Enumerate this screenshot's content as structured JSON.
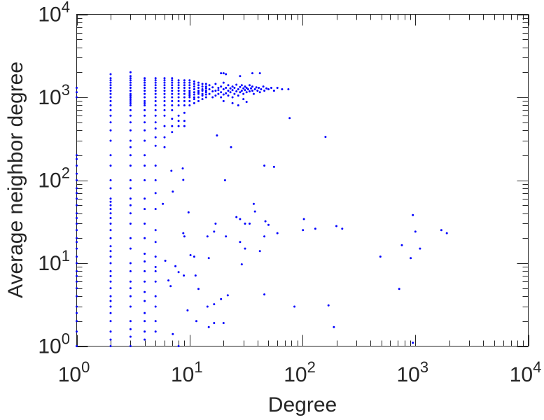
{
  "chart_data": {
    "type": "scatter",
    "title": "",
    "xlabel": "Degree",
    "ylabel": "Average neighbor degree",
    "xscale": "log",
    "yscale": "log",
    "xlim": [
      1,
      10000
    ],
    "ylim": [
      1,
      10000
    ],
    "grid": false,
    "marker_color": "#0000ff",
    "x_ticks": [
      {
        "base": "10",
        "exp": "0"
      },
      {
        "base": "10",
        "exp": "1"
      },
      {
        "base": "10",
        "exp": "2"
      },
      {
        "base": "10",
        "exp": "3"
      },
      {
        "base": "10",
        "exp": "4"
      }
    ],
    "y_ticks": [
      {
        "base": "10",
        "exp": "0"
      },
      {
        "base": "10",
        "exp": "1"
      },
      {
        "base": "10",
        "exp": "2"
      },
      {
        "base": "10",
        "exp": "3"
      },
      {
        "base": "10",
        "exp": "4"
      }
    ],
    "columns": [
      {
        "x": 1,
        "y": [
          1,
          1.5,
          2,
          2.5,
          3,
          4,
          5,
          6,
          7,
          8,
          10,
          12,
          15,
          18,
          20,
          25,
          30,
          35,
          40,
          50,
          60,
          70,
          80,
          100,
          120,
          150,
          180,
          200,
          1000,
          1150,
          1300
        ]
      },
      {
        "x": 2,
        "y": [
          1,
          1.2,
          1.5,
          2,
          2.5,
          3,
          3.5,
          4,
          5,
          6,
          7,
          8,
          10,
          12,
          14,
          16,
          20,
          25,
          30,
          35,
          40,
          45,
          50,
          55,
          60,
          80,
          100,
          150,
          200,
          300,
          400,
          500,
          600,
          700,
          800,
          900,
          1000,
          1100,
          1200,
          1300,
          1400,
          1500,
          1600,
          1700,
          1900
        ]
      },
      {
        "x": 3,
        "y": [
          1,
          1.3,
          1.6,
          2,
          3,
          4,
          5,
          6,
          8,
          10,
          15,
          20,
          30,
          40,
          50,
          60,
          80,
          100,
          150,
          200,
          250,
          300,
          400,
          500,
          600,
          700,
          800,
          850,
          900,
          950,
          1000,
          1050,
          1100,
          1200,
          1300,
          1400,
          1500,
          1600,
          1700,
          1800,
          2000
        ]
      },
      {
        "x": 4,
        "y": [
          1.2,
          1.5,
          2,
          2.5,
          3.5,
          4.5,
          6,
          8,
          10.5,
          13,
          20,
          30,
          45,
          60,
          100,
          150,
          200,
          300,
          400,
          500,
          600,
          700,
          800,
          850,
          900,
          1000,
          1100,
          1200,
          1300,
          1400,
          1500,
          1600,
          1700
        ]
      },
      {
        "x": 5,
        "y": [
          1.5,
          2,
          3,
          4,
          6,
          8,
          9,
          12,
          18,
          25,
          45,
          70,
          100,
          150,
          260,
          330,
          420,
          500,
          600,
          700,
          800,
          900,
          1000,
          1100,
          1200,
          1300,
          1400,
          1500,
          1600,
          1700
        ]
      },
      {
        "x": 6,
        "y": [
          250,
          330,
          450,
          600,
          700,
          800,
          900,
          1000,
          1100,
          1200,
          1300,
          1400,
          1500,
          1600,
          1700
        ]
      },
      {
        "x": 7,
        "y": [
          380,
          450,
          550,
          700,
          800,
          900,
          1000,
          1100,
          1200,
          1300,
          1400,
          1500,
          1600,
          1700
        ]
      },
      {
        "x": 8,
        "y": [
          450,
          520,
          600,
          800,
          900,
          1000,
          1100,
          1200,
          1300,
          1400,
          1500,
          1600
        ]
      },
      {
        "x": 9,
        "y": [
          450,
          520,
          650,
          800,
          900,
          1000,
          1100,
          1200,
          1300,
          1400,
          1500,
          1600
        ]
      },
      {
        "x": 10,
        "y": [
          800,
          900,
          1000,
          1050,
          1100,
          1150,
          1200,
          1300,
          1400,
          1500,
          1600
        ]
      },
      {
        "x": 11,
        "y": [
          850,
          950,
          1000,
          1080,
          1150,
          1250,
          1350,
          1450,
          1550
        ]
      },
      {
        "x": 12,
        "y": [
          900,
          1000,
          1100,
          1150,
          1200,
          1300,
          1400,
          1500
        ]
      },
      {
        "x": 13,
        "y": [
          950,
          1050,
          1100,
          1200,
          1250,
          1350,
          1450
        ]
      },
      {
        "x": 14,
        "y": [
          1000,
          1080,
          1150,
          1200,
          1280,
          1350,
          1450
        ]
      }
    ],
    "points": [
      [
        15,
        1100
      ],
      [
        15,
        1250
      ],
      [
        15,
        1400
      ],
      [
        16,
        1000
      ],
      [
        16,
        1180
      ],
      [
        16,
        1320
      ],
      [
        17,
        1050
      ],
      [
        17,
        1200
      ],
      [
        17,
        1450
      ],
      [
        18,
        1100
      ],
      [
        18,
        1300
      ],
      [
        18,
        1220
      ],
      [
        19,
        1000
      ],
      [
        19,
        1150
      ],
      [
        19,
        1350
      ],
      [
        20,
        1080
      ],
      [
        20,
        1250
      ],
      [
        20,
        1500
      ],
      [
        21,
        1120
      ],
      [
        21,
        1300
      ],
      [
        22,
        1050
      ],
      [
        22,
        1200
      ],
      [
        22,
        1400
      ],
      [
        23,
        1150
      ],
      [
        23,
        1280
      ],
      [
        24,
        1000
      ],
      [
        24,
        1220
      ],
      [
        24,
        1350
      ],
      [
        25,
        1100
      ],
      [
        25,
        1300
      ],
      [
        26,
        1180
      ],
      [
        26,
        1420
      ],
      [
        27,
        1250
      ],
      [
        27,
        1050
      ],
      [
        28,
        1150
      ],
      [
        28,
        1330
      ],
      [
        29,
        1200
      ],
      [
        29,
        1400
      ],
      [
        30,
        1100
      ],
      [
        30,
        1280
      ],
      [
        31,
        1220
      ],
      [
        31,
        1350
      ],
      [
        32,
        1150
      ],
      [
        32,
        1300
      ],
      [
        33,
        1250
      ],
      [
        34,
        1180
      ],
      [
        34,
        1400
      ],
      [
        35,
        1280
      ],
      [
        36,
        1200
      ],
      [
        36,
        1350
      ],
      [
        37,
        1100
      ],
      [
        38,
        1250
      ],
      [
        39,
        1320
      ],
      [
        40,
        1200
      ],
      [
        41,
        1300
      ],
      [
        42,
        1150
      ],
      [
        43,
        1250
      ],
      [
        45,
        1350
      ],
      [
        46,
        1200
      ],
      [
        48,
        1280
      ],
      [
        50,
        1250
      ],
      [
        53,
        1300
      ],
      [
        56,
        1200
      ],
      [
        60,
        1300
      ],
      [
        66,
        1250
      ],
      [
        75,
        1250
      ],
      [
        20,
        900
      ],
      [
        24,
        850
      ],
      [
        30,
        950
      ],
      [
        27,
        800
      ],
      [
        32,
        880
      ],
      [
        19,
        1950
      ],
      [
        20,
        1950
      ],
      [
        21,
        1900
      ],
      [
        28,
        1800
      ],
      [
        36,
        1950
      ],
      [
        42,
        1950
      ],
      [
        160,
        333
      ],
      [
        77,
        560
      ],
      [
        17.5,
        347
      ],
      [
        23.3,
        250
      ],
      [
        46,
        150
      ],
      [
        56,
        145
      ],
      [
        20.6,
        100
      ],
      [
        8.7,
        139
      ],
      [
        6.9,
        130
      ],
      [
        8.8,
        101
      ],
      [
        7.1,
        73
      ],
      [
        5.8,
        52
      ],
      [
        37,
        52
      ],
      [
        38,
        42
      ],
      [
        9.8,
        41
      ],
      [
        26,
        36
      ],
      [
        28,
        34
      ],
      [
        31,
        30
      ],
      [
        34,
        30
      ],
      [
        47,
        32
      ],
      [
        50,
        29
      ],
      [
        60,
        23
      ],
      [
        103,
        34
      ],
      [
        101,
        25
      ],
      [
        130,
        26
      ],
      [
        200,
        28
      ],
      [
        225,
        26
      ],
      [
        950,
        38
      ],
      [
        760,
        16.5
      ],
      [
        1000,
        24
      ],
      [
        1100,
        15
      ],
      [
        1700,
        25
      ],
      [
        1900,
        23
      ],
      [
        490,
        12
      ],
      [
        910,
        11.5
      ],
      [
        720,
        4.9
      ],
      [
        17,
        30
      ],
      [
        14.4,
        21
      ],
      [
        16.5,
        24
      ],
      [
        21,
        21
      ],
      [
        28,
        18
      ],
      [
        31,
        15
      ],
      [
        29,
        9.7
      ],
      [
        42,
        14
      ],
      [
        46,
        21
      ],
      [
        8.8,
        23
      ],
      [
        9,
        21
      ],
      [
        10.2,
        12.5
      ],
      [
        11,
        12
      ],
      [
        14.8,
        11.5
      ],
      [
        8,
        7.8
      ],
      [
        8.9,
        7.1
      ],
      [
        11.3,
        7.1
      ],
      [
        6.5,
        6.2
      ],
      [
        6.8,
        5.3
      ],
      [
        7.5,
        9.2
      ],
      [
        6.1,
        10.7
      ],
      [
        12,
        4.9
      ],
      [
        21.8,
        4.1
      ],
      [
        19,
        3.7
      ],
      [
        16.5,
        3.2
      ],
      [
        14.4,
        3
      ],
      [
        46,
        4.2
      ],
      [
        85,
        3
      ],
      [
        170,
        3.1
      ],
      [
        190,
        1.7
      ],
      [
        9.6,
        2.7
      ],
      [
        11.5,
        2
      ],
      [
        14.8,
        1.7
      ],
      [
        16.5,
        1.9
      ],
      [
        20,
        1.9
      ],
      [
        7.1,
        1.4
      ],
      [
        8,
        1
      ],
      [
        950,
        1.1
      ]
    ]
  }
}
